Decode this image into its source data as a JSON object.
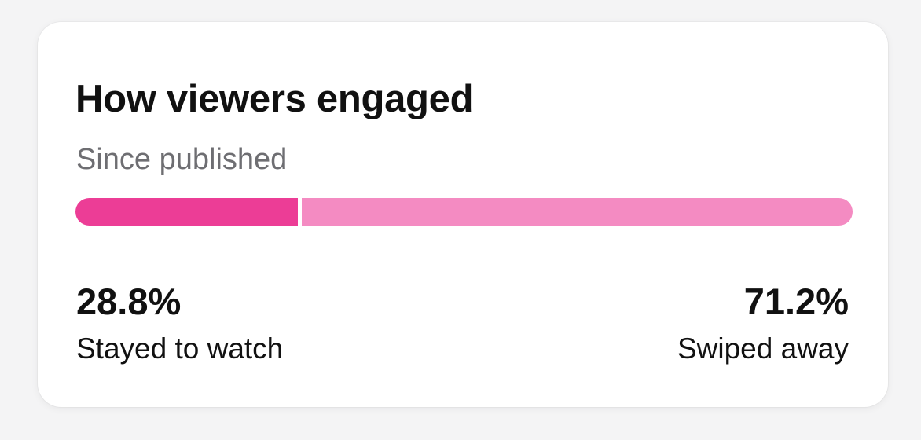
{
  "card": {
    "title": "How viewers engaged",
    "subtitle": "Since published"
  },
  "engagement": {
    "stayed": {
      "percent": 28.8,
      "value_text": "28.8%",
      "label": "Stayed to watch",
      "color": "#ec3d96"
    },
    "swiped": {
      "percent": 71.2,
      "value_text": "71.2%",
      "label": "Swiped away",
      "color": "#f48bc2"
    }
  }
}
